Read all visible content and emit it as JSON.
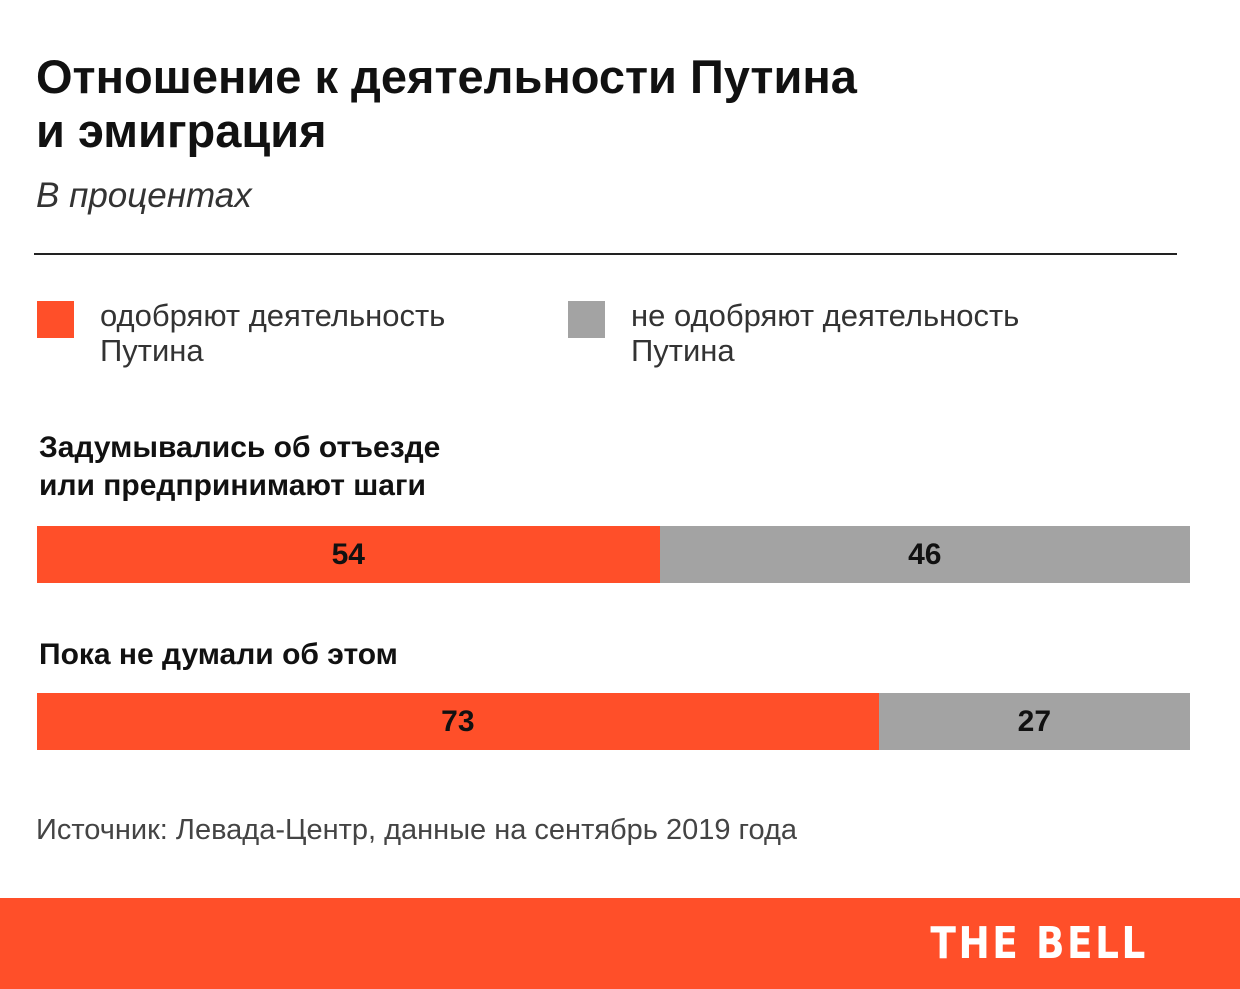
{
  "header": {
    "title_lines": [
      "Отношение к деятельности Путина",
      "и эмиграция"
    ],
    "subtitle": "В процентах"
  },
  "legend": [
    {
      "lines": [
        "одобряют деятельность",
        "Путина"
      ],
      "color": "#ff4f29"
    },
    {
      "lines": [
        "не одобряют деятельность",
        "Путина"
      ],
      "color": "#a3a3a3"
    }
  ],
  "chart_data": {
    "type": "bar",
    "stacked": true,
    "orientation": "horizontal",
    "categories": [
      "Задумывались об отъезде или предпринимают шаги",
      "Пока не думали об этом"
    ],
    "category_label_lines": [
      [
        "Задумывались об отъезде",
        "или предпринимают шаги"
      ],
      [
        "Пока не думали об этом"
      ]
    ],
    "series": [
      {
        "name": "одобряют деятельность Путина",
        "values": [
          54,
          73
        ],
        "color": "#ff4f29"
      },
      {
        "name": "не одобряют деятельность Путина",
        "values": [
          46,
          27
        ],
        "color": "#a3a3a3"
      }
    ],
    "xlim": [
      0,
      100
    ],
    "legend_position": "top"
  },
  "source": "Источник:  Левада-Центр, данные на сентябрь 2019 года",
  "footer": {
    "logo_text": "THE BELL",
    "color": "#ff4f29"
  }
}
